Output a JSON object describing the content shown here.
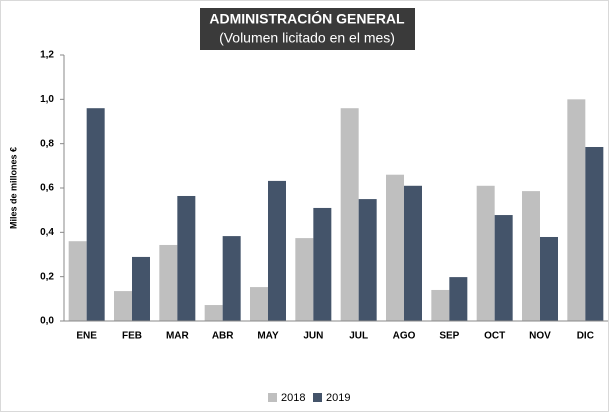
{
  "chart_data": {
    "type": "bar",
    "title": "ADMINISTRACIÓN GENERAL",
    "subtitle": "(Volumen licitado en el mes)",
    "y_label": "Miles de millones €",
    "categories": [
      "ENE",
      "FEB",
      "MAR",
      "ABR",
      "MAY",
      "JUN",
      "JUL",
      "AGO",
      "SEP",
      "OCT",
      "NOV",
      "DIC"
    ],
    "series": [
      {
        "name": "2018",
        "color": "#bfbfbf",
        "values": [
          0.36,
          0.135,
          0.343,
          0.072,
          0.153,
          0.374,
          0.96,
          0.66,
          0.14,
          0.61,
          0.586,
          1.0
        ]
      },
      {
        "name": "2019",
        "color": "#44546a",
        "values": [
          0.96,
          0.289,
          0.564,
          0.383,
          0.632,
          0.51,
          0.55,
          0.61,
          0.198,
          0.478,
          0.379,
          0.785
        ]
      }
    ],
    "ylim": [
      0,
      1.2
    ],
    "yticks": [
      {
        "value": 0,
        "label": "0,0"
      },
      {
        "value": 0.2,
        "label": "0,2"
      },
      {
        "value": 0.4,
        "label": "0,4"
      },
      {
        "value": 0.6,
        "label": "0,6"
      },
      {
        "value": 0.8,
        "label": "0,8"
      },
      {
        "value": 1.0,
        "label": "1,0"
      },
      {
        "value": 1.2,
        "label": "1,2"
      }
    ],
    "legend": "bottom"
  }
}
